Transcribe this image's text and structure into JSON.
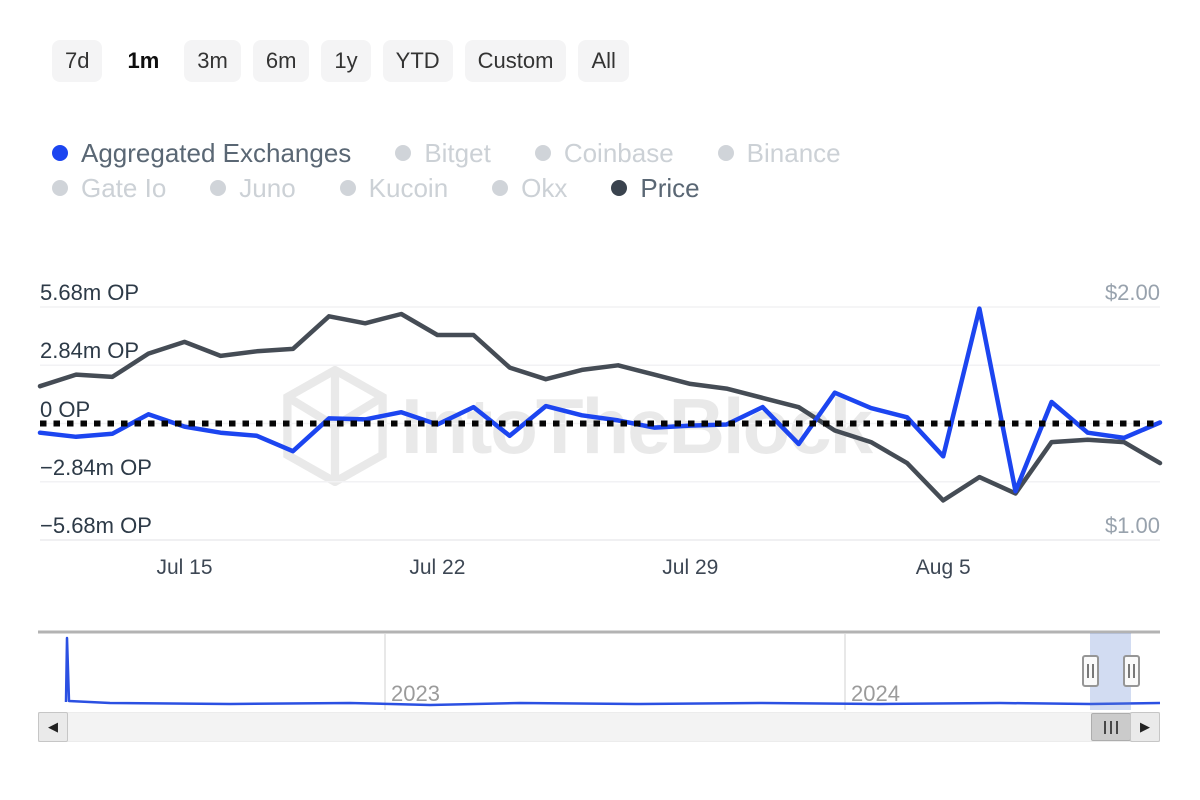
{
  "toolbar": {
    "buttons": [
      {
        "label": "7d",
        "selected": false
      },
      {
        "label": "1m",
        "selected": true
      },
      {
        "label": "3m",
        "selected": false
      },
      {
        "label": "6m",
        "selected": false
      },
      {
        "label": "1y",
        "selected": false
      },
      {
        "label": "YTD",
        "selected": false
      },
      {
        "label": "Custom",
        "selected": false
      },
      {
        "label": "All",
        "selected": false
      }
    ]
  },
  "legend": {
    "items": [
      {
        "label": "Aggregated Exchanges",
        "active": true,
        "dot_color": "#1c45f0",
        "text_color": "#5a6774"
      },
      {
        "label": "Bitget",
        "active": false,
        "dot_color": "#d0d4d9",
        "text_color": "#ccd1d6"
      },
      {
        "label": "Coinbase",
        "active": false,
        "dot_color": "#d0d4d9",
        "text_color": "#ccd1d6"
      },
      {
        "label": "Binance",
        "active": false,
        "dot_color": "#d0d4d9",
        "text_color": "#ccd1d6"
      },
      {
        "label": "Gate Io",
        "active": false,
        "dot_color": "#d0d4d9",
        "text_color": "#ccd1d6"
      },
      {
        "label": "Juno",
        "active": false,
        "dot_color": "#d0d4d9",
        "text_color": "#ccd1d6"
      },
      {
        "label": "Kucoin",
        "active": false,
        "dot_color": "#d0d4d9",
        "text_color": "#ccd1d6"
      },
      {
        "label": "Okx",
        "active": false,
        "dot_color": "#d0d4d9",
        "text_color": "#ccd1d6"
      },
      {
        "label": "Price",
        "active": true,
        "dot_color": "#3a434e",
        "text_color": "#5a6774"
      }
    ]
  },
  "watermark": {
    "text": "IntoTheBlock"
  },
  "chart_data": {
    "type": "line",
    "x": [
      "Jul 11",
      "Jul 12",
      "Jul 13",
      "Jul 14",
      "Jul 15",
      "Jul 16",
      "Jul 17",
      "Jul 18",
      "Jul 19",
      "Jul 20",
      "Jul 21",
      "Jul 22",
      "Jul 23",
      "Jul 24",
      "Jul 25",
      "Jul 26",
      "Jul 27",
      "Jul 28",
      "Jul 29",
      "Jul 30",
      "Jul 31",
      "Aug 1",
      "Aug 2",
      "Aug 3",
      "Aug 4",
      "Aug 5",
      "Aug 6",
      "Aug 7",
      "Aug 8",
      "Aug 9",
      "Aug 10",
      "Aug 11"
    ],
    "x_ticks": [
      {
        "label": "Jul 15",
        "index": 4
      },
      {
        "label": "Jul 22",
        "index": 11
      },
      {
        "label": "Jul 29",
        "index": 18
      },
      {
        "label": "Aug 5",
        "index": 25
      }
    ],
    "left_axis": {
      "unit": "OP",
      "max": 5.68,
      "min": -5.68,
      "ticks": [
        "5.68m OP",
        "2.84m OP",
        "0 OP",
        "−2.84m OP",
        "−5.68m OP"
      ]
    },
    "right_axis": {
      "unit": "$",
      "max": 2.0,
      "min": 1.0,
      "ticks": [
        "$2.00",
        "$1.00"
      ]
    },
    "zero_line": {
      "show": true,
      "color": "#050505"
    },
    "grid": {
      "show": true,
      "color": "#f2f2f4"
    },
    "series": [
      {
        "name": "Aggregated Exchanges",
        "axis": "left",
        "unit": "m OP",
        "color": "#1c45f0",
        "values": [
          -0.45,
          -0.65,
          -0.5,
          0.45,
          -0.15,
          -0.45,
          -0.6,
          -1.35,
          0.25,
          0.2,
          0.55,
          -0.05,
          0.8,
          -0.6,
          0.85,
          0.4,
          0.15,
          -0.2,
          -0.1,
          -0.05,
          0.8,
          -1.0,
          1.5,
          0.75,
          0.3,
          -1.6,
          5.6,
          -3.3,
          1.05,
          -0.45,
          -0.7,
          0.05
        ]
      },
      {
        "name": "Price",
        "axis": "right",
        "unit": "USD",
        "color": "#454c55",
        "values": [
          1.66,
          1.71,
          1.7,
          1.8,
          1.85,
          1.79,
          1.81,
          1.82,
          1.96,
          1.93,
          1.97,
          1.88,
          1.88,
          1.74,
          1.69,
          1.73,
          1.75,
          1.71,
          1.67,
          1.65,
          1.61,
          1.57,
          1.47,
          1.42,
          1.33,
          1.17,
          1.27,
          1.2,
          1.42,
          1.43,
          1.42,
          1.33
        ]
      }
    ],
    "navigator": {
      "color": "#2b50e2",
      "year_ticks": [
        {
          "label": "2023",
          "x": 385
        },
        {
          "label": "2024",
          "x": 845
        }
      ],
      "selection": {
        "from_x": 1090,
        "to_x": 1131
      },
      "polyline": [
        [
          66,
          702
        ],
        [
          67,
          638
        ],
        [
          69,
          701
        ],
        [
          110,
          703
        ],
        [
          230,
          704
        ],
        [
          350,
          703
        ],
        [
          430,
          705
        ],
        [
          520,
          703
        ],
        [
          640,
          704
        ],
        [
          760,
          703
        ],
        [
          880,
          704
        ],
        [
          1000,
          703
        ],
        [
          1090,
          704
        ],
        [
          1160,
          703
        ]
      ]
    }
  },
  "scrollbar": {
    "left_arrow": "◀",
    "right_arrow": "▶",
    "thumb_from": 1091,
    "thumb_to": 1131
  }
}
